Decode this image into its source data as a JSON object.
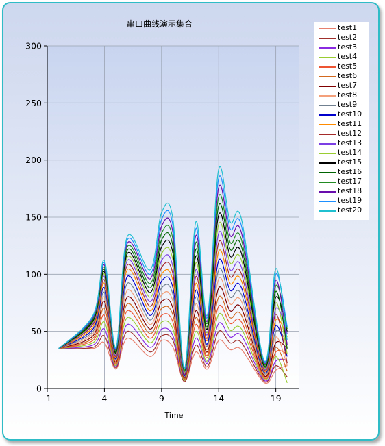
{
  "chart_data": {
    "type": "line",
    "title": "串口曲线演示集合",
    "xlabel": "Time",
    "ylabel": "",
    "xlim": [
      -1,
      21
    ],
    "ylim": [
      0,
      300
    ],
    "x_ticks": [
      "-1",
      "4",
      "9",
      "14",
      "19"
    ],
    "y_ticks": [
      "0",
      "50",
      "100",
      "150",
      "200",
      "250",
      "300"
    ],
    "grid": true,
    "legend_position": "right",
    "x": [
      0,
      3,
      4,
      5,
      6,
      8,
      9,
      10,
      11,
      12,
      13,
      14,
      15,
      16,
      18,
      19,
      20
    ],
    "series": [
      {
        "name": "test1",
        "color": "#e8806f",
        "values": [
          35,
          35,
          40,
          17,
          44,
          28,
          42,
          36,
          6,
          32,
          17,
          42,
          34,
          34,
          5,
          16,
          20
        ]
      },
      {
        "name": "test2",
        "color": "#a0302c",
        "values": [
          35,
          36,
          46,
          18,
          50,
          32,
          46,
          42,
          6,
          38,
          19,
          50,
          40,
          40,
          6,
          20,
          10
        ]
      },
      {
        "name": "test3",
        "color": "#8a2be2",
        "values": [
          35,
          38,
          52,
          19,
          56,
          36,
          52,
          46,
          7,
          44,
          22,
          57,
          45,
          46,
          7,
          24,
          25
        ]
      },
      {
        "name": "test4",
        "color": "#9acd32",
        "values": [
          35,
          40,
          58,
          20,
          62,
          40,
          58,
          52,
          7,
          50,
          24,
          65,
          51,
          52,
          8,
          28,
          5
        ]
      },
      {
        "name": "test5",
        "color": "#ee5533",
        "values": [
          35,
          42,
          64,
          21,
          68,
          44,
          64,
          58,
          8,
          56,
          27,
          72,
          57,
          58,
          9,
          32,
          30
        ]
      },
      {
        "name": "test6",
        "color": "#d2691e",
        "values": [
          35,
          44,
          70,
          22,
          74,
          48,
          70,
          64,
          8,
          62,
          29,
          80,
          62,
          64,
          10,
          36,
          15
        ]
      },
      {
        "name": "test7",
        "color": "#800000",
        "values": [
          35,
          46,
          76,
          23,
          80,
          52,
          76,
          70,
          9,
          68,
          32,
          88,
          68,
          70,
          11,
          40,
          35
        ]
      },
      {
        "name": "test8",
        "color": "#f4a07a",
        "values": [
          35,
          48,
          80,
          24,
          86,
          56,
          82,
          76,
          10,
          74,
          34,
          96,
          74,
          76,
          12,
          45,
          20
        ]
      },
      {
        "name": "test9",
        "color": "#708090",
        "values": [
          35,
          50,
          84,
          25,
          92,
          60,
          88,
          82,
          10,
          80,
          37,
          104,
          80,
          82,
          13,
          50,
          40
        ]
      },
      {
        "name": "test10",
        "color": "#0000cd",
        "values": [
          35,
          52,
          88,
          26,
          98,
          64,
          94,
          88,
          11,
          86,
          39,
          112,
          86,
          88,
          14,
          55,
          28
        ]
      },
      {
        "name": "test11",
        "color": "#ff8c00",
        "values": [
          35,
          54,
          92,
          27,
          104,
          68,
          100,
          94,
          12,
          92,
          42,
          120,
          92,
          94,
          15,
          60,
          45
        ]
      },
      {
        "name": "test12",
        "color": "#a52a2a",
        "values": [
          35,
          56,
          95,
          28,
          108,
          72,
          106,
          100,
          12,
          98,
          44,
          128,
          98,
          100,
          16,
          65,
          22
        ]
      },
      {
        "name": "test13",
        "color": "#7b3fe4",
        "values": [
          35,
          57,
          98,
          29,
          112,
          76,
          112,
          106,
          13,
          104,
          47,
          136,
          104,
          106,
          17,
          70,
          48
        ]
      },
      {
        "name": "test14",
        "color": "#9acd32",
        "values": [
          35,
          58,
          100,
          30,
          115,
          80,
          118,
          112,
          14,
          110,
          49,
          144,
          110,
          112,
          18,
          75,
          30
        ]
      },
      {
        "name": "test15",
        "color": "#000000",
        "values": [
          35,
          59,
          102,
          31,
          118,
          84,
          124,
          118,
          15,
          116,
          52,
          152,
          116,
          118,
          19,
          80,
          50
        ]
      },
      {
        "name": "test16",
        "color": "#006400",
        "values": [
          35,
          60,
          104,
          32,
          121,
          88,
          130,
          124,
          15,
          122,
          54,
          160,
          122,
          124,
          20,
          85,
          35
        ]
      },
      {
        "name": "test17",
        "color": "#228b22",
        "values": [
          35,
          61,
          106,
          33,
          124,
          92,
          136,
          130,
          16,
          128,
          57,
          168,
          128,
          130,
          21,
          90,
          52
        ]
      },
      {
        "name": "test18",
        "color": "#6a0dad",
        "values": [
          35,
          62,
          108,
          34,
          127,
          96,
          142,
          136,
          17,
          134,
          59,
          176,
          134,
          136,
          22,
          95,
          38
        ]
      },
      {
        "name": "test19",
        "color": "#1e90ff",
        "values": [
          35,
          63,
          110,
          35,
          130,
          100,
          148,
          142,
          17,
          140,
          62,
          184,
          140,
          142,
          23,
          100,
          54
        ]
      },
      {
        "name": "test20",
        "color": "#20c0d0",
        "values": [
          35,
          64,
          112,
          36,
          133,
          104,
          154,
          148,
          18,
          146,
          64,
          192,
          146,
          148,
          24,
          105,
          42
        ]
      }
    ]
  }
}
